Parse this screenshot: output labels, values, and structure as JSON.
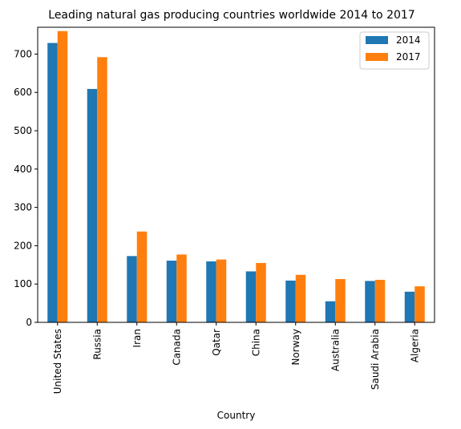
{
  "chart_data": {
    "type": "bar",
    "title": "Leading natural gas producing countries worldwide 2014 to 2017",
    "xlabel": "Country",
    "ylabel": "",
    "categories": [
      "United States",
      "Russia",
      "Iran",
      "Canada",
      "Qatar",
      "China",
      "Norway",
      "Australia",
      "Saudi Arabia",
      "Algeria"
    ],
    "series": [
      {
        "name": "2014",
        "color": "#1f77b4",
        "values": [
          729,
          609,
          173,
          161,
          159,
          133,
          109,
          55,
          108,
          80
        ]
      },
      {
        "name": "2017",
        "color": "#ff7f0e",
        "values": [
          760,
          692,
          237,
          177,
          164,
          155,
          124,
          113,
          111,
          94
        ]
      }
    ],
    "ylim": [
      0,
      800
    ],
    "yticks": [
      0,
      100,
      200,
      300,
      400,
      500,
      600,
      700
    ],
    "grid": false,
    "legend_position": "top-right"
  }
}
